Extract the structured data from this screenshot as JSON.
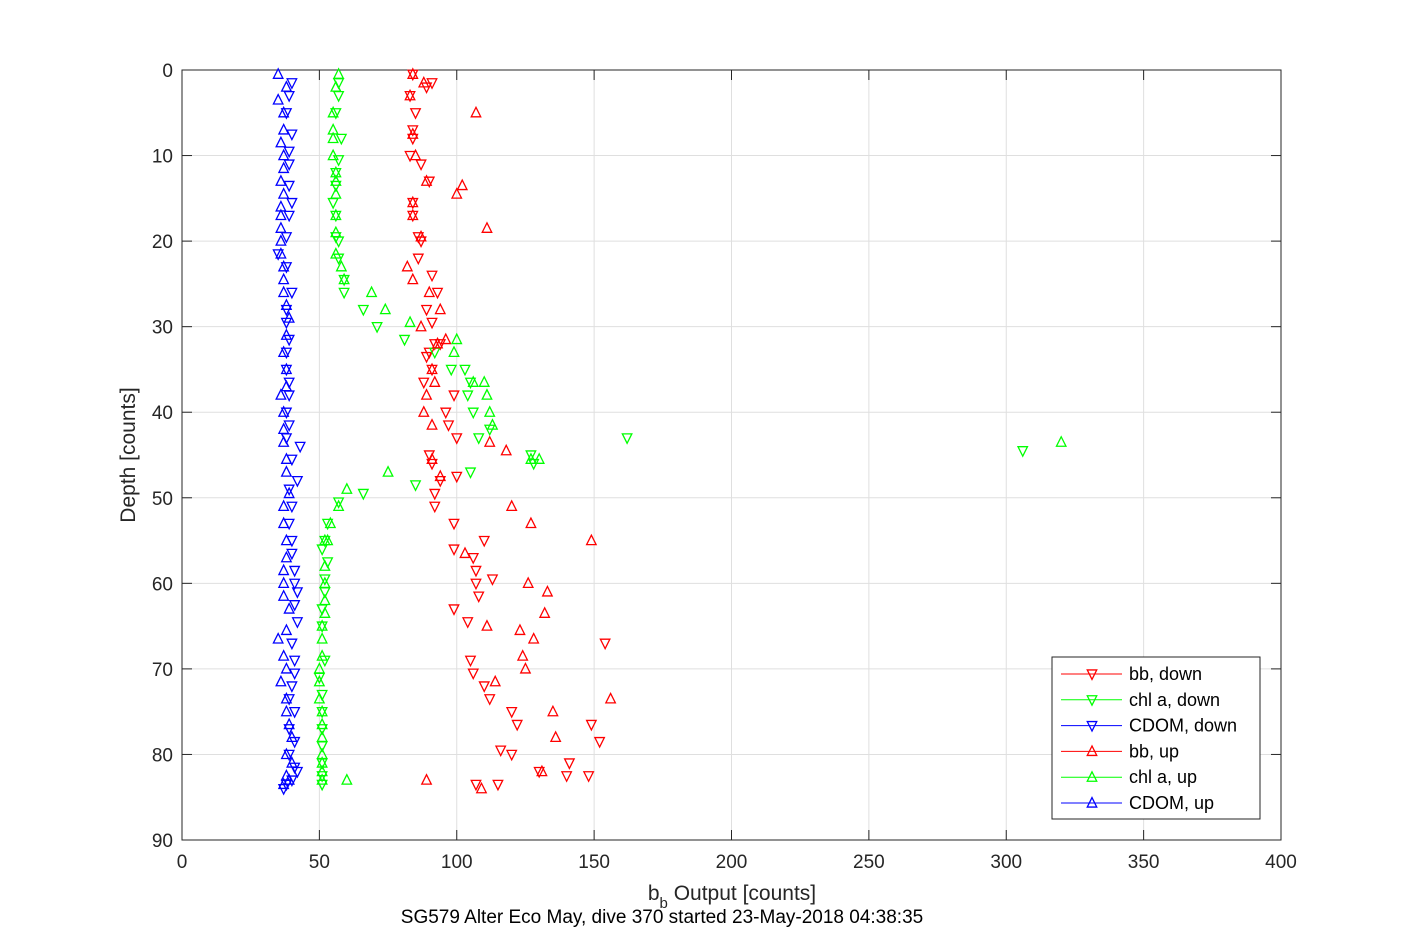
{
  "footer": "SG579 Alter Eco May, dive 370 started 23-May-2018 04:38:35",
  "chart_data": {
    "type": "scatter",
    "title": "",
    "xlabel_main": "b",
    "xlabel_sub": "b",
    "xlabel_rest": " Output [counts]",
    "ylabel": "Depth [counts]",
    "xlim": [
      0,
      400
    ],
    "ylim": [
      0,
      90
    ],
    "y_reversed": true,
    "xticks": [
      0,
      50,
      100,
      150,
      200,
      250,
      300,
      350,
      400
    ],
    "yticks": [
      0,
      10,
      20,
      30,
      40,
      50,
      60,
      70,
      80,
      90
    ],
    "grid": true,
    "legend_position": "bottom-right",
    "series": [
      {
        "name": "bb, down",
        "color": "#ff0000",
        "marker": "triangle-down",
        "points": [
          [
            84,
            0.5
          ],
          [
            89,
            2
          ],
          [
            91,
            1.5
          ],
          [
            83,
            3
          ],
          [
            85,
            5
          ],
          [
            84,
            7
          ],
          [
            84,
            8
          ],
          [
            83,
            10
          ],
          [
            87,
            11
          ],
          [
            90,
            13
          ],
          [
            84,
            15.5
          ],
          [
            84,
            17
          ],
          [
            86,
            19.5
          ],
          [
            87,
            20
          ],
          [
            86,
            22
          ],
          [
            91,
            24
          ],
          [
            93,
            26
          ],
          [
            89,
            28
          ],
          [
            91,
            29.5
          ],
          [
            94,
            32
          ],
          [
            92,
            32
          ],
          [
            90,
            33
          ],
          [
            89,
            33.5
          ],
          [
            91,
            35
          ],
          [
            88,
            36.5
          ],
          [
            99,
            38
          ],
          [
            96,
            40
          ],
          [
            97,
            41.5
          ],
          [
            100,
            43
          ],
          [
            91,
            46
          ],
          [
            90,
            45
          ],
          [
            94,
            48
          ],
          [
            92,
            49.5
          ],
          [
            100,
            47.5
          ],
          [
            92,
            51
          ],
          [
            99,
            53
          ],
          [
            99,
            56
          ],
          [
            110,
            55
          ],
          [
            106,
            57
          ],
          [
            107,
            58.5
          ],
          [
            107,
            60
          ],
          [
            99,
            63
          ],
          [
            108,
            61.5
          ],
          [
            113,
            59.5
          ],
          [
            104,
            64.5
          ],
          [
            105,
            69
          ],
          [
            106,
            70.5
          ],
          [
            110,
            72
          ],
          [
            112,
            73.5
          ],
          [
            120,
            75
          ],
          [
            122,
            76.5
          ],
          [
            116,
            79.5
          ],
          [
            120,
            80
          ],
          [
            107,
            83.5
          ],
          [
            115,
            83.5
          ],
          [
            130,
            82
          ],
          [
            140,
            82.5
          ],
          [
            148,
            82.5
          ],
          [
            141,
            81
          ],
          [
            149,
            76.5
          ],
          [
            152,
            78.5
          ],
          [
            154,
            67
          ]
        ]
      },
      {
        "name": "chl a, down",
        "color": "#00ff00",
        "marker": "triangle-down",
        "points": [
          [
            57,
            1.5
          ],
          [
            57,
            3
          ],
          [
            56,
            5
          ],
          [
            58,
            8
          ],
          [
            57,
            10.5
          ],
          [
            56,
            12
          ],
          [
            56,
            13.5
          ],
          [
            55,
            15.5
          ],
          [
            56,
            17
          ],
          [
            56,
            19.5
          ],
          [
            57,
            20
          ],
          [
            57,
            22
          ],
          [
            59,
            24.5
          ],
          [
            59,
            26
          ],
          [
            66,
            28
          ],
          [
            71,
            30
          ],
          [
            81,
            31.5
          ],
          [
            92,
            33
          ],
          [
            98,
            35
          ],
          [
            103,
            35
          ],
          [
            104,
            38
          ],
          [
            105,
            36.5
          ],
          [
            106,
            40
          ],
          [
            112,
            42
          ],
          [
            108,
            43
          ],
          [
            127,
            45
          ],
          [
            128,
            46
          ],
          [
            162,
            43
          ],
          [
            306,
            44.5
          ],
          [
            105,
            47
          ],
          [
            85,
            48.5
          ],
          [
            66,
            49.5
          ],
          [
            57,
            50.5
          ],
          [
            53,
            53
          ],
          [
            52,
            55
          ],
          [
            51,
            56
          ],
          [
            53,
            57.5
          ],
          [
            52,
            59.5
          ],
          [
            52,
            61
          ],
          [
            51,
            63
          ],
          [
            51,
            65
          ],
          [
            52,
            69
          ],
          [
            50,
            71
          ],
          [
            51,
            73
          ],
          [
            51,
            75
          ],
          [
            51,
            77
          ],
          [
            51,
            79
          ],
          [
            51,
            81
          ],
          [
            51,
            82.5
          ],
          [
            51,
            83.5
          ]
        ]
      },
      {
        "name": "CDOM, down",
        "color": "#0000ff",
        "marker": "triangle-down",
        "points": [
          [
            40,
            1.5
          ],
          [
            39,
            3
          ],
          [
            38,
            5
          ],
          [
            40,
            7.5
          ],
          [
            39,
            9.5
          ],
          [
            39,
            11
          ],
          [
            39,
            13.5
          ],
          [
            40,
            15.5
          ],
          [
            39,
            17
          ],
          [
            38,
            19.5
          ],
          [
            35,
            21.5
          ],
          [
            38,
            23
          ],
          [
            40,
            26
          ],
          [
            38,
            28
          ],
          [
            38,
            29.5
          ],
          [
            39,
            31.5
          ],
          [
            38,
            33
          ],
          [
            38,
            35
          ],
          [
            39,
            36.5
          ],
          [
            39,
            38
          ],
          [
            38,
            40
          ],
          [
            39,
            41.5
          ],
          [
            38,
            43
          ],
          [
            43,
            44
          ],
          [
            40,
            45.5
          ],
          [
            42,
            48
          ],
          [
            39,
            49
          ],
          [
            40,
            51
          ],
          [
            39,
            53
          ],
          [
            40,
            55
          ],
          [
            40,
            56.5
          ],
          [
            41,
            58.5
          ],
          [
            41,
            60
          ],
          [
            42,
            61
          ],
          [
            41,
            62.5
          ],
          [
            42,
            64.5
          ],
          [
            40,
            67
          ],
          [
            41,
            69
          ],
          [
            41,
            70.5
          ],
          [
            40,
            72
          ],
          [
            39,
            73.5
          ],
          [
            41,
            75
          ],
          [
            39,
            77
          ],
          [
            41,
            78.5
          ],
          [
            39,
            80
          ],
          [
            41,
            81.5
          ],
          [
            42,
            82
          ],
          [
            40,
            83
          ],
          [
            38,
            83.5
          ],
          [
            37,
            84
          ]
        ]
      },
      {
        "name": "bb, up",
        "color": "#ff0000",
        "marker": "triangle-up",
        "points": [
          [
            84,
            0.5
          ],
          [
            88,
            1.5
          ],
          [
            83,
            3
          ],
          [
            107,
            5
          ],
          [
            84,
            7.5
          ],
          [
            85,
            10
          ],
          [
            89,
            13
          ],
          [
            102,
            13.5
          ],
          [
            100,
            14.5
          ],
          [
            84,
            15.5
          ],
          [
            84,
            17
          ],
          [
            111,
            18.5
          ],
          [
            87,
            19.5
          ],
          [
            82,
            23
          ],
          [
            84,
            24.5
          ],
          [
            90,
            26
          ],
          [
            94,
            28
          ],
          [
            87,
            30
          ],
          [
            96,
            31.5
          ],
          [
            93,
            32
          ],
          [
            91,
            35
          ],
          [
            92,
            36.5
          ],
          [
            89,
            38
          ],
          [
            88,
            40
          ],
          [
            91,
            41.5
          ],
          [
            112,
            43.5
          ],
          [
            118,
            44.5
          ],
          [
            91,
            45.5
          ],
          [
            94,
            47.5
          ],
          [
            120,
            51
          ],
          [
            127,
            53
          ],
          [
            149,
            55
          ],
          [
            103,
            56.5
          ],
          [
            126,
            60
          ],
          [
            133,
            61
          ],
          [
            132,
            63.5
          ],
          [
            111,
            65
          ],
          [
            123,
            65.5
          ],
          [
            128,
            66.5
          ],
          [
            124,
            68.5
          ],
          [
            125,
            70
          ],
          [
            114,
            71.5
          ],
          [
            156,
            73.5
          ],
          [
            135,
            75
          ],
          [
            136,
            78
          ],
          [
            89,
            83
          ],
          [
            131,
            82
          ],
          [
            109,
            84
          ]
        ]
      },
      {
        "name": "chl a, up",
        "color": "#00ff00",
        "marker": "triangle-up",
        "points": [
          [
            57,
            0.5
          ],
          [
            56,
            2
          ],
          [
            55,
            5
          ],
          [
            55,
            7
          ],
          [
            55,
            8
          ],
          [
            55,
            10
          ],
          [
            56,
            12
          ],
          [
            56,
            13
          ],
          [
            56,
            14.5
          ],
          [
            56,
            17
          ],
          [
            56,
            19
          ],
          [
            56,
            21.5
          ],
          [
            58,
            23
          ],
          [
            59,
            24.5
          ],
          [
            69,
            26
          ],
          [
            74,
            28
          ],
          [
            83,
            29.5
          ],
          [
            100,
            31.5
          ],
          [
            99,
            33
          ],
          [
            106,
            36.5
          ],
          [
            110,
            36.5
          ],
          [
            111,
            38
          ],
          [
            112,
            40
          ],
          [
            113,
            41.5
          ],
          [
            320,
            43.5
          ],
          [
            127,
            45.5
          ],
          [
            130,
            45.5
          ],
          [
            75,
            47
          ],
          [
            60,
            49
          ],
          [
            57,
            51
          ],
          [
            54,
            53
          ],
          [
            53,
            55
          ],
          [
            52,
            55
          ],
          [
            52,
            58
          ],
          [
            52,
            60
          ],
          [
            52,
            62
          ],
          [
            52,
            63.5
          ],
          [
            51,
            65
          ],
          [
            51,
            66.5
          ],
          [
            51,
            68.5
          ],
          [
            50,
            70
          ],
          [
            50,
            71.5
          ],
          [
            50,
            73.5
          ],
          [
            51,
            75
          ],
          [
            51,
            76.5
          ],
          [
            51,
            78
          ],
          [
            51,
            80
          ],
          [
            51,
            81
          ],
          [
            51,
            82
          ],
          [
            51,
            83
          ],
          [
            60,
            83
          ]
        ]
      },
      {
        "name": "CDOM, up",
        "color": "#0000ff",
        "marker": "triangle-up",
        "points": [
          [
            35,
            0.5
          ],
          [
            38,
            2
          ],
          [
            35,
            3.5
          ],
          [
            37,
            5
          ],
          [
            37,
            7
          ],
          [
            36,
            8.5
          ],
          [
            37,
            10
          ],
          [
            37,
            11.5
          ],
          [
            36,
            13
          ],
          [
            37,
            14.5
          ],
          [
            36,
            16
          ],
          [
            36,
            17
          ],
          [
            36,
            18.5
          ],
          [
            36,
            20
          ],
          [
            36,
            21.5
          ],
          [
            37,
            23
          ],
          [
            37,
            24.5
          ],
          [
            37,
            26
          ],
          [
            38,
            27.5
          ],
          [
            39,
            29
          ],
          [
            38,
            31
          ],
          [
            37,
            33
          ],
          [
            38,
            35
          ],
          [
            38,
            37
          ],
          [
            36,
            38
          ],
          [
            37,
            40
          ],
          [
            37,
            42
          ],
          [
            37,
            43.5
          ],
          [
            38,
            45.5
          ],
          [
            38,
            47
          ],
          [
            39,
            49.5
          ],
          [
            37,
            51
          ],
          [
            37,
            53
          ],
          [
            38,
            55
          ],
          [
            38,
            57
          ],
          [
            37,
            58.5
          ],
          [
            37,
            60
          ],
          [
            37,
            61.5
          ],
          [
            39,
            63
          ],
          [
            38,
            65.5
          ],
          [
            35,
            66.5
          ],
          [
            37,
            68.5
          ],
          [
            38,
            70
          ],
          [
            36,
            71.5
          ],
          [
            38,
            73.5
          ],
          [
            38,
            75
          ],
          [
            39,
            76.5
          ],
          [
            40,
            78
          ],
          [
            38,
            80
          ],
          [
            40,
            81
          ],
          [
            38,
            82.5
          ],
          [
            37,
            83.5
          ],
          [
            39,
            83
          ]
        ]
      }
    ]
  }
}
